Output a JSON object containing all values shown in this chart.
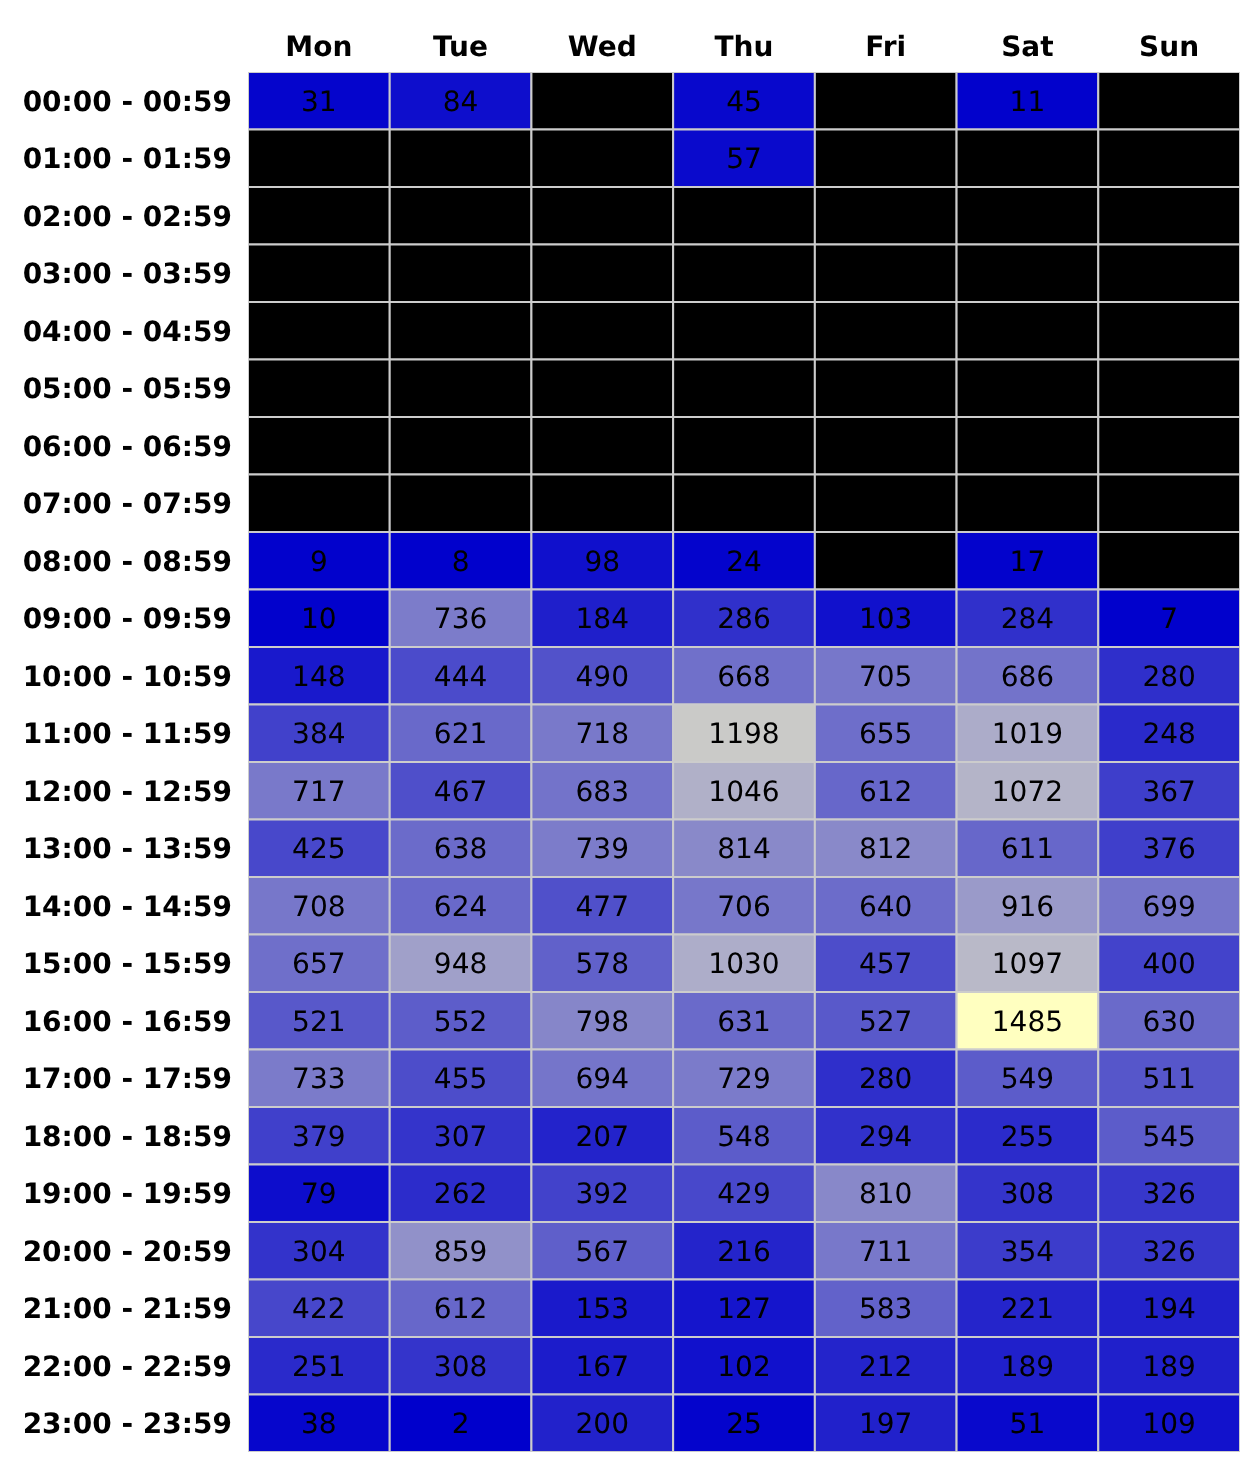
{
  "chart_data": {
    "type": "heatmap",
    "categories": [
      "Mon",
      "Tue",
      "Wed",
      "Thu",
      "Fri",
      "Sat",
      "Sun"
    ],
    "y_categories": [
      "00:00 - 00:59",
      "01:00 - 01:59",
      "02:00 - 02:59",
      "03:00 - 03:59",
      "04:00 - 04:59",
      "05:00 - 05:59",
      "06:00 - 06:59",
      "07:00 - 07:59",
      "08:00 - 08:59",
      "09:00 - 09:59",
      "10:00 - 10:59",
      "11:00 - 11:59",
      "12:00 - 12:59",
      "13:00 - 13:59",
      "14:00 - 14:59",
      "15:00 - 15:59",
      "16:00 - 16:59",
      "17:00 - 17:59",
      "18:00 - 18:59",
      "19:00 - 19:59",
      "20:00 - 20:59",
      "21:00 - 21:59",
      "22:00 - 22:59",
      "23:00 - 23:59"
    ],
    "cells": [
      [
        31,
        84,
        null,
        45,
        null,
        11,
        null
      ],
      [
        null,
        null,
        null,
        57,
        null,
        null,
        null
      ],
      [
        null,
        null,
        null,
        null,
        null,
        null,
        null
      ],
      [
        null,
        null,
        null,
        null,
        null,
        null,
        null
      ],
      [
        null,
        null,
        null,
        null,
        null,
        null,
        null
      ],
      [
        null,
        null,
        null,
        null,
        null,
        null,
        null
      ],
      [
        null,
        null,
        null,
        null,
        null,
        null,
        null
      ],
      [
        null,
        null,
        null,
        null,
        null,
        null,
        null
      ],
      [
        9,
        8,
        98,
        24,
        null,
        17,
        null
      ],
      [
        10,
        736,
        184,
        286,
        103,
        284,
        7
      ],
      [
        148,
        444,
        490,
        668,
        705,
        686,
        280
      ],
      [
        384,
        621,
        718,
        1198,
        655,
        1019,
        248
      ],
      [
        717,
        467,
        683,
        1046,
        612,
        1072,
        367
      ],
      [
        425,
        638,
        739,
        814,
        812,
        611,
        376
      ],
      [
        708,
        624,
        477,
        706,
        640,
        916,
        699
      ],
      [
        657,
        948,
        578,
        1030,
        457,
        1097,
        400
      ],
      [
        521,
        552,
        798,
        631,
        527,
        1485,
        630
      ],
      [
        733,
        455,
        694,
        729,
        280,
        549,
        511
      ],
      [
        379,
        307,
        207,
        548,
        294,
        255,
        545
      ],
      [
        79,
        262,
        392,
        429,
        810,
        308,
        326
      ],
      [
        304,
        859,
        567,
        216,
        711,
        354,
        326
      ],
      [
        422,
        612,
        153,
        127,
        583,
        221,
        194
      ],
      [
        251,
        308,
        167,
        102,
        212,
        189,
        189
      ],
      [
        38,
        2,
        200,
        25,
        197,
        51,
        109
      ]
    ],
    "data_labels": true
  }
}
